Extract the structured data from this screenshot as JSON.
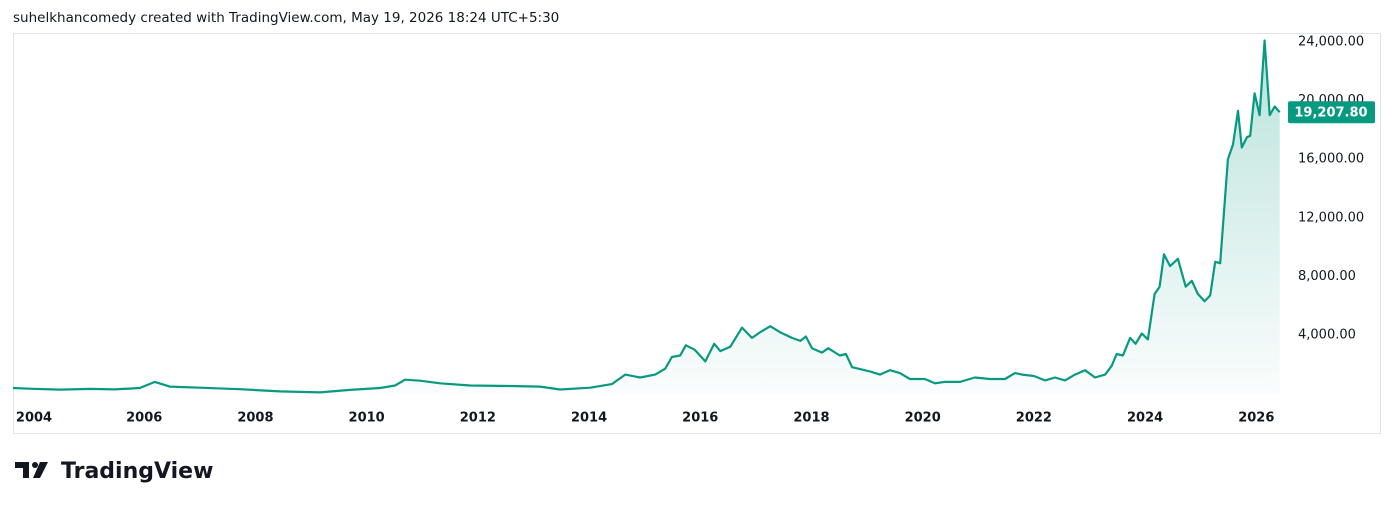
{
  "header": "suhelkhancomedy created with TradingView.com, May 19, 2026 18:24 UTC+5:30",
  "brand": "TradingView",
  "chart_data": {
    "type": "line",
    "color": "#089981",
    "x": [
      2003.64,
      2004.0,
      2004.49,
      2005.03,
      2005.47,
      2005.92,
      2006.19,
      2006.46,
      2007.0,
      2007.72,
      2008.44,
      2009.16,
      2009.7,
      2010.24,
      2010.51,
      2010.69,
      2010.96,
      2011.32,
      2011.86,
      2012.58,
      2013.12,
      2013.48,
      2014.02,
      2014.41,
      2014.65,
      2014.92,
      2015.19,
      2015.37,
      2015.49,
      2015.64,
      2015.74,
      2015.9,
      2016.09,
      2016.25,
      2016.36,
      2016.54,
      2016.75,
      2016.93,
      2017.08,
      2017.26,
      2017.43,
      2017.65,
      2017.8,
      2017.9,
      2018.01,
      2018.19,
      2018.3,
      2018.51,
      2018.62,
      2018.73,
      2019.06,
      2019.23,
      2019.41,
      2019.59,
      2019.77,
      2020.04,
      2020.22,
      2020.4,
      2020.67,
      2020.94,
      2021.21,
      2021.48,
      2021.66,
      2021.79,
      2022.0,
      2022.2,
      2022.38,
      2022.56,
      2022.74,
      2022.92,
      2023.1,
      2023.28,
      2023.4,
      2023.49,
      2023.6,
      2023.73,
      2023.83,
      2023.94,
      2024.05,
      2024.17,
      2024.26,
      2024.34,
      2024.45,
      2024.59,
      2024.73,
      2024.84,
      2024.95,
      2025.07,
      2025.17,
      2025.26,
      2025.35,
      2025.49,
      2025.58,
      2025.67,
      2025.74,
      2025.83,
      2025.89,
      2025.97,
      2026.06,
      2026.15,
      2026.24,
      2026.33,
      2026.42
    ],
    "values": [
      380,
      330,
      270,
      320,
      290,
      380,
      800,
      480,
      400,
      300,
      150,
      80,
      250,
      380,
      550,
      950,
      880,
      700,
      550,
      520,
      480,
      280,
      400,
      650,
      1300,
      1100,
      1300,
      1700,
      2500,
      2600,
      3300,
      3000,
      2200,
      3400,
      2900,
      3200,
      4500,
      3800,
      4200,
      4600,
      4200,
      3800,
      3600,
      3900,
      3100,
      2800,
      3100,
      2600,
      2700,
      1800,
      1500,
      1300,
      1600,
      1400,
      1000,
      1000,
      700,
      800,
      800,
      1100,
      1000,
      1000,
      1400,
      1300,
      1200,
      900,
      1100,
      900,
      1300,
      1600,
      1100,
      1300,
      1900,
      2700,
      2600,
      3800,
      3400,
      4100,
      3700,
      6800,
      7300,
      9500,
      8700,
      9200,
      7300,
      7700,
      6800,
      6300,
      6700,
      9000,
      8900,
      16000,
      17000,
      19300,
      16800,
      17500,
      17600,
      20500,
      19000,
      24100,
      19000,
      19600,
      19207.8
    ],
    "last_value_label": "19,207.80",
    "xlim": [
      2003.64,
      2026.57
    ],
    "xticks": [
      2004,
      2006,
      2008,
      2010,
      2012,
      2014,
      2016,
      2018,
      2020,
      2022,
      2024,
      2026
    ],
    "ylim": [
      -300,
      24614
    ],
    "yticks": [
      {
        "value": 4000,
        "label": "4,000.00"
      },
      {
        "value": 8000,
        "label": "8,000.00"
      },
      {
        "value": 12000,
        "label": "12,000.00"
      },
      {
        "value": 16000,
        "label": "16,000.00"
      },
      {
        "value": 20000,
        "label": "20,000.00"
      },
      {
        "value": 24000,
        "label": "24,000.00"
      }
    ]
  }
}
